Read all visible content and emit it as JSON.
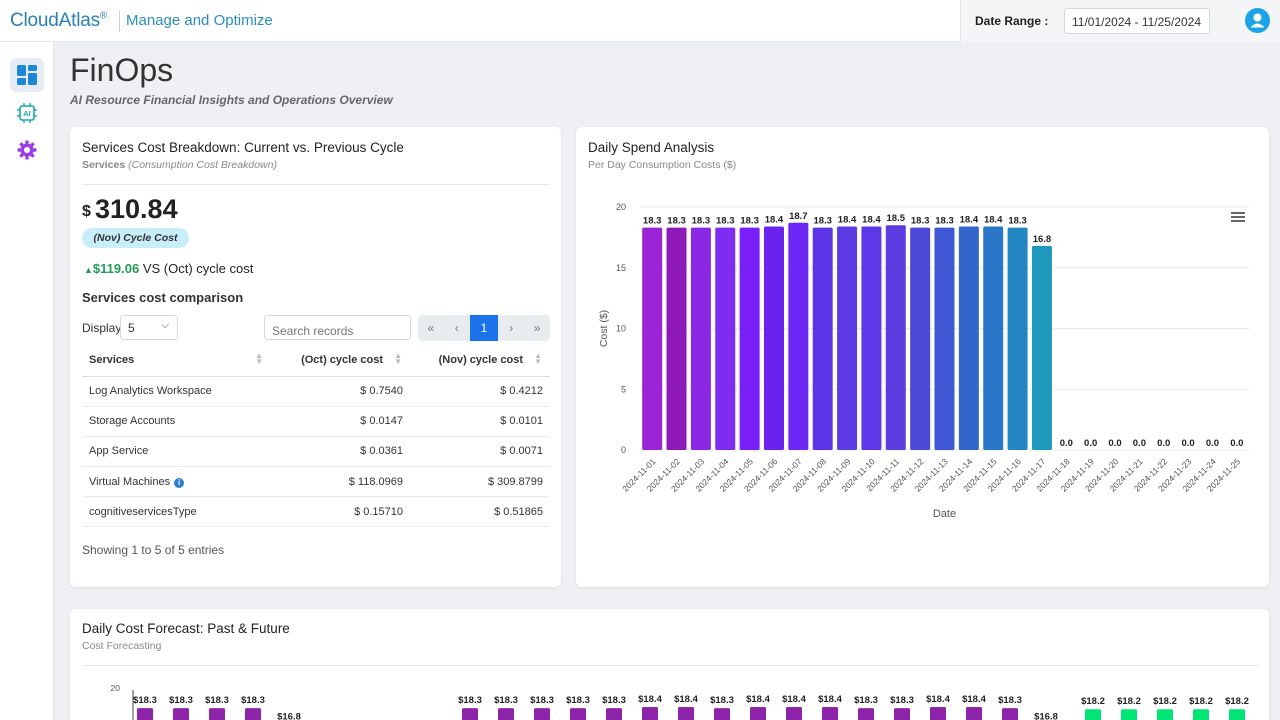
{
  "header": {
    "brand": "CloudAtlas",
    "brand_mark": "®",
    "section": "Manage and Optimize",
    "date_range_label": "Date Range :",
    "date_range_value": "11/01/2024 - 11/25/2024"
  },
  "sidebar": {
    "items": [
      {
        "icon": "dashboard-icon",
        "active": true
      },
      {
        "icon": "ai-chip-icon",
        "active": false
      },
      {
        "icon": "settings-gear-icon",
        "active": false
      }
    ]
  },
  "page": {
    "title": "FinOps",
    "subtitle": "AI Resource Financial Insights and Operations Overview"
  },
  "services_card": {
    "title": "Services Cost Breakdown: Current vs. Previous Cycle",
    "subtitle_bold": "Services",
    "subtitle_italic": "(Consumption Cost Breakdown)",
    "currency": "$",
    "total": "310.84",
    "badge": "(Nov) Cycle Cost",
    "delta_amount": "$119.06",
    "delta_text": "VS (Oct) cycle cost",
    "comparison_title": "Services cost comparison",
    "display_label": "Display",
    "display_value": "5",
    "search_placeholder": "Search records",
    "pager": [
      "«",
      "‹",
      "1",
      "›",
      "»"
    ],
    "columns": [
      "Services",
      "(Oct) cycle cost",
      "(Nov) cycle cost"
    ],
    "rows": [
      {
        "service": "Log Analytics Workspace",
        "oct": "$ 0.7540",
        "nov": "$ 0.4212"
      },
      {
        "service": "Storage Accounts",
        "oct": "$ 0.0147",
        "nov": "$ 0.0101"
      },
      {
        "service": "App Service",
        "oct": "$ 0.0361",
        "nov": "$ 0.0071"
      },
      {
        "service": "Virtual Machines",
        "oct": "$ 118.0969",
        "nov": "$ 309.8799",
        "info": true
      },
      {
        "service": "cognitiveservicesType",
        "oct": "$ 0.15710",
        "nov": "$ 0.51865"
      }
    ],
    "showing": "Showing 1 to 5 of 5 entries"
  },
  "daily_card": {
    "title": "Daily Spend Analysis",
    "subtitle": "Per Day Consumption Costs ($)"
  },
  "forecast_card": {
    "title": "Daily Cost Forecast: Past & Future",
    "subtitle": "Cost Forecasting"
  },
  "chart_data": [
    {
      "type": "bar",
      "title": "Daily Spend Analysis",
      "xlabel": "Date",
      "ylabel": "Cost ($)",
      "ylim": [
        0,
        20
      ],
      "yticks": [
        0,
        5,
        10,
        15,
        20
      ],
      "grid": true,
      "categories": [
        "2024-11-01",
        "2024-11-02",
        "2024-11-03",
        "2024-11-04",
        "2024-11-05",
        "2024-11-06",
        "2024-11-07",
        "2024-11-08",
        "2024-11-09",
        "2024-11-10",
        "2024-11-11",
        "2024-11-12",
        "2024-11-13",
        "2024-11-14",
        "2024-11-15",
        "2024-11-16",
        "2024-11-17",
        "2024-11-18",
        "2024-11-19",
        "2024-11-20",
        "2024-11-21",
        "2024-11-22",
        "2024-11-23",
        "2024-11-24",
        "2024-11-25"
      ],
      "values": [
        18.3,
        18.3,
        18.3,
        18.3,
        18.3,
        18.4,
        18.7,
        18.3,
        18.4,
        18.4,
        18.5,
        18.3,
        18.3,
        18.4,
        18.4,
        18.3,
        16.8,
        0.0,
        0.0,
        0.0,
        0.0,
        0.0,
        0.0,
        0.0,
        0.0
      ],
      "labels": [
        "18.3",
        "18.3",
        "18.3",
        "18.3",
        "18.3",
        "18.4",
        "18.7",
        "18.3",
        "18.4",
        "18.4",
        "18.5",
        "18.3",
        "18.3",
        "18.4",
        "18.4",
        "18.3",
        "16.8",
        "0.0",
        "0.0",
        "0.0",
        "0.0",
        "0.0",
        "0.0",
        "0.0",
        "0.0"
      ],
      "colors": [
        "#9b25d6",
        "#8f18b8",
        "#8b28e6",
        "#7e2cf0",
        "#7a1ff8",
        "#6a22ee",
        "#6d28f6",
        "#5d35e6",
        "#5d3be4",
        "#5e37e8",
        "#5a3ce0",
        "#4c49d6",
        "#3e58d4",
        "#3366cc",
        "#2a76c8",
        "#2386c2",
        "#1f98be",
        "#1f98be",
        "#1f98be",
        "#1f98be",
        "#1f98be",
        "#1f98be",
        "#1f98be",
        "#1f98be",
        "#1f98be"
      ]
    },
    {
      "type": "bar",
      "title": "Daily Cost Forecast: Past & Future",
      "ylim": [
        0,
        20
      ],
      "yticks": [
        20
      ],
      "labels": [
        "$18.3",
        "$18.3",
        "$18.3",
        "$18.3",
        "$16.8",
        "$18.3",
        "$18.3",
        "$18.3",
        "$18.3",
        "$18.3",
        "$18.4",
        "$18.4",
        "$18.3",
        "$18.4",
        "$18.4",
        "$18.4",
        "$18.3",
        "$18.3",
        "$18.4",
        "$18.4",
        "$18.3",
        "$16.8",
        "$18.2",
        "$18.2",
        "$18.2",
        "$18.2",
        "$18.2"
      ],
      "values": [
        18.3,
        18.3,
        18.3,
        18.3,
        16.8,
        18.3,
        18.3,
        18.3,
        18.3,
        18.3,
        18.4,
        18.4,
        18.3,
        18.4,
        18.4,
        18.4,
        18.3,
        18.3,
        18.4,
        18.4,
        18.3,
        16.8,
        18.2,
        18.2,
        18.2,
        18.2,
        18.2
      ],
      "series_colors": {
        "past": "#8e24aa",
        "forecast": "#00e676"
      }
    }
  ]
}
